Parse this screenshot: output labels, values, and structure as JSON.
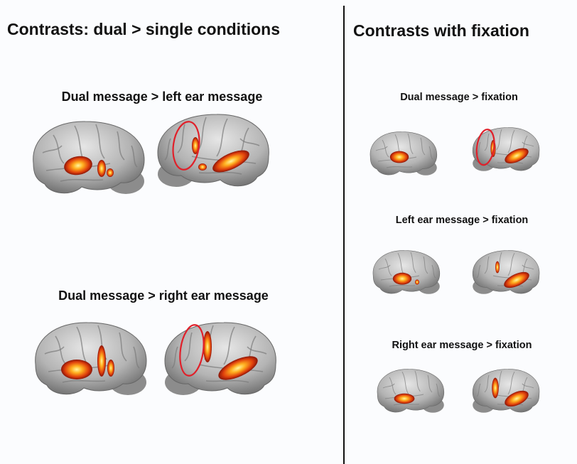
{
  "left": {
    "title": "Contrasts: dual > single conditions",
    "panels": [
      {
        "label": "Dual message > left ear message"
      },
      {
        "label": "Dual message > right ear message"
      }
    ]
  },
  "right": {
    "title": "Contrasts with fixation",
    "panels": [
      {
        "label": "Dual message > fixation"
      },
      {
        "label": "Left ear message > fixation"
      },
      {
        "label": "Right ear message > fixation"
      }
    ]
  }
}
